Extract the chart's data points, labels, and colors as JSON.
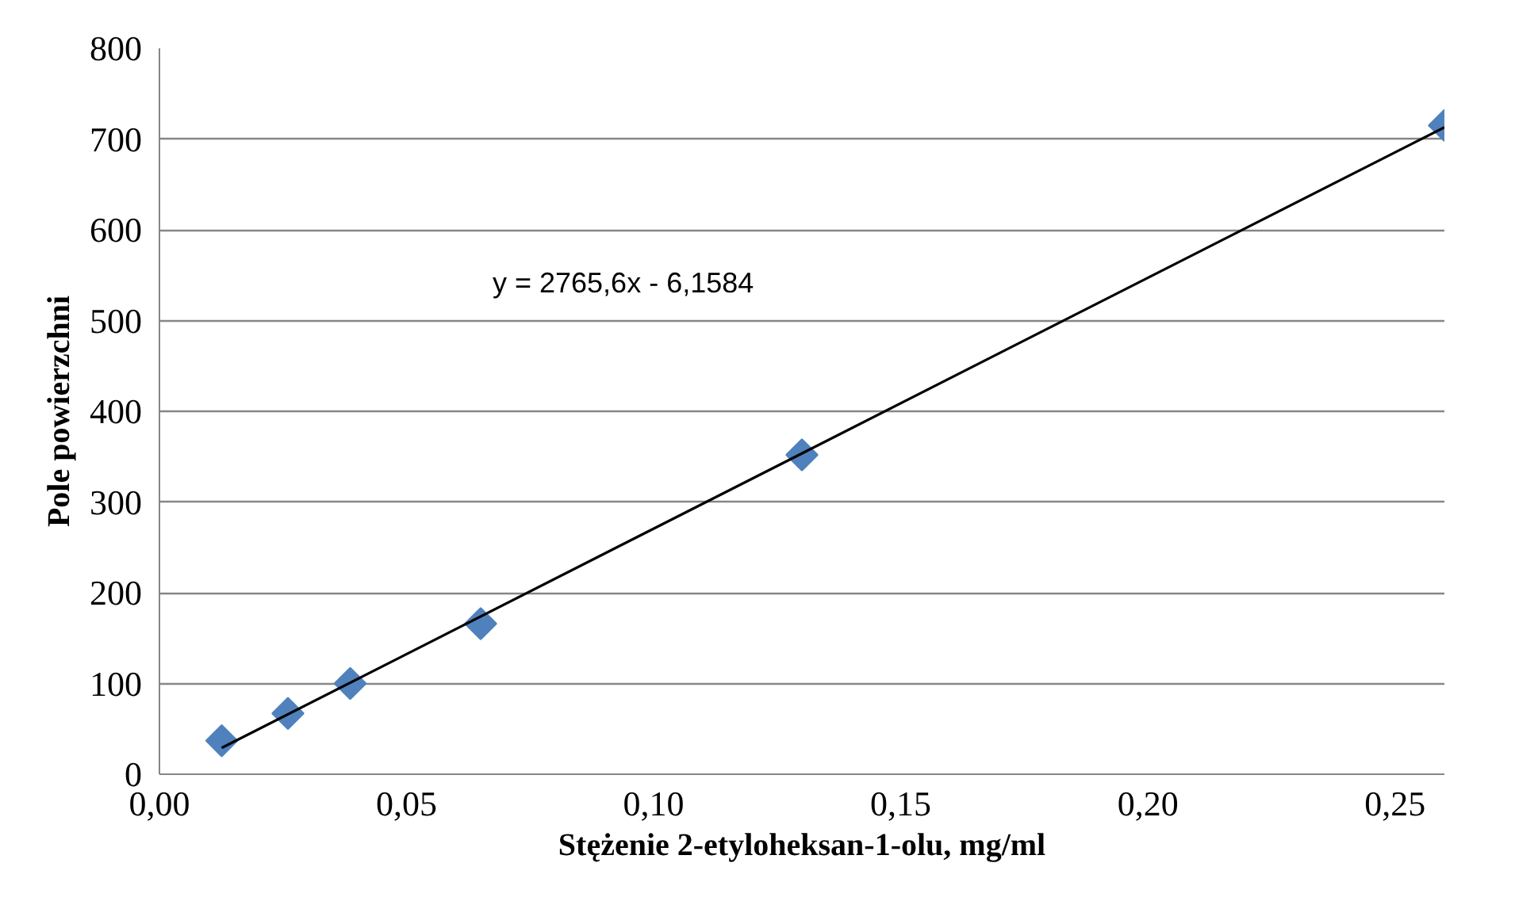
{
  "chart_data": {
    "type": "scatter",
    "xlabel": "Stężenie 2-etyloheksan-1-olu, mg/ml",
    "ylabel": "Pole powierzchni",
    "x": [
      0.0126,
      0.026,
      0.0386,
      0.065,
      0.13,
      0.26
    ],
    "series": [
      {
        "color": "#4f81bd",
        "marker": "diamond",
        "values": [
          37,
          67,
          100,
          166,
          352,
          715
        ]
      },
      {
        "type": "line",
        "color": "#000000",
        "x": [
          0.0126,
          0.26
        ],
        "values": [
          29,
          713
        ]
      }
    ],
    "xlim": [
      0,
      0.26
    ],
    "xticks": [
      {
        "value": 0,
        "label": "0,00"
      },
      {
        "value": 0.05,
        "label": "0,05"
      },
      {
        "value": 0.1,
        "label": "0,10"
      },
      {
        "value": 0.15,
        "label": "0,15"
      },
      {
        "value": 0.2,
        "label": "0,20"
      },
      {
        "value": 0.25,
        "label": "0,25"
      }
    ],
    "ylim": [
      0,
      800
    ],
    "yticks": [
      0,
      100,
      200,
      300,
      400,
      500,
      600,
      700,
      800
    ],
    "grid": "y",
    "line_style": "solid",
    "annotations": [
      "y = 2765,6x - 6,1584"
    ]
  }
}
